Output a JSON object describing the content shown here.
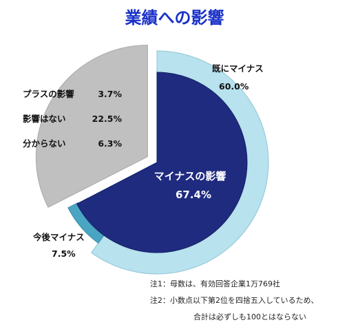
{
  "title": "業績への影響",
  "chart_data": {
    "type": "pie",
    "outer_ring": {
      "slices": [
        {
          "label": "既にマイナス",
          "value": 60.0,
          "value_label": "60.0%",
          "color": "#b7e2ee"
        },
        {
          "label": "今後マイナス",
          "value": 7.5,
          "value_label": "7.5%",
          "color": "#4aa5c3"
        },
        {
          "label": "プラスの影響",
          "value": 3.7,
          "value_label": "3.7%",
          "color": "#c0c0c0"
        },
        {
          "label": "影響はない",
          "value": 22.5,
          "value_label": "22.5%",
          "color": "#c0c0c0"
        },
        {
          "label": "分からない",
          "value": 6.3,
          "value_label": "6.3%",
          "color": "#c0c0c0"
        }
      ]
    },
    "inner_slice": {
      "label": "マイナスの影響",
      "value": 67.4,
      "value_label": "67.4%",
      "color": "#1f2b7f"
    }
  },
  "notes": [
    "注1：母数は、有効回答企業1万769社",
    "注2：小数点以下第2位を四捨五入しているため、",
    "合計は必ずしも100とはならない"
  ]
}
